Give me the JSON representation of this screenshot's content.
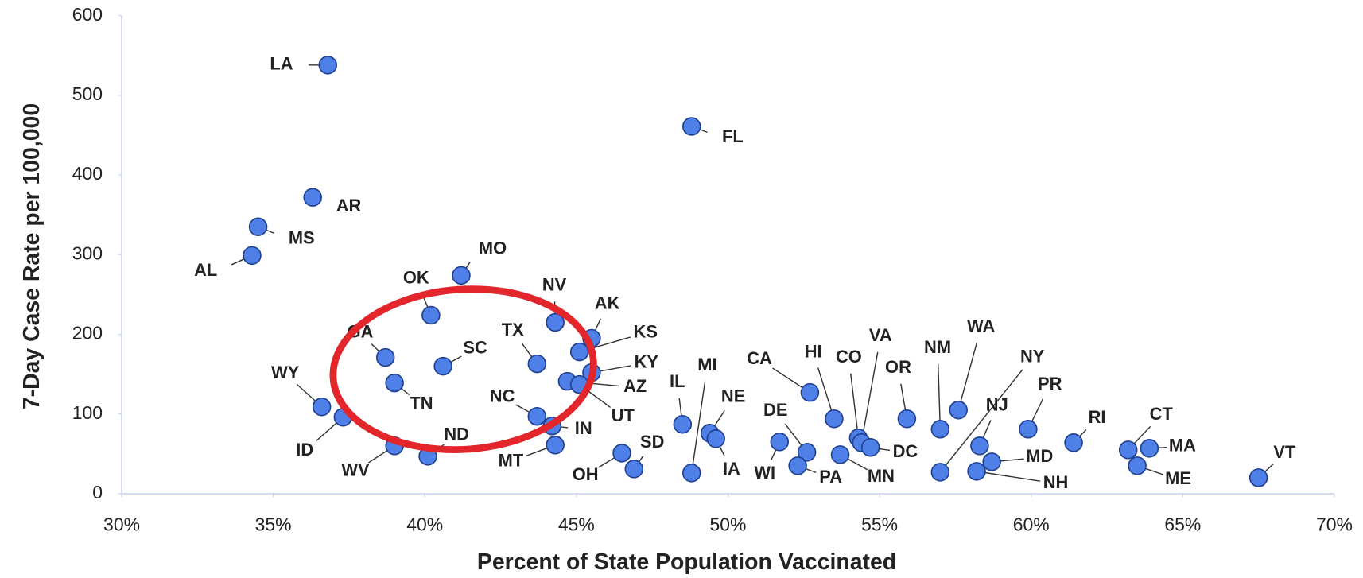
{
  "chart_data": {
    "type": "scatter",
    "xlabel": "Percent of State Population Vaccinated",
    "ylabel": "7-Day Case Rate per 100,000",
    "color": "#4f80e8",
    "xlim": [
      30,
      70
    ],
    "ylim": [
      0,
      600
    ],
    "xticks": [
      {
        "value": 30,
        "label": "30%"
      },
      {
        "value": 35,
        "label": "35%"
      },
      {
        "value": 40,
        "label": "40%"
      },
      {
        "value": 45,
        "label": "45%"
      },
      {
        "value": 50,
        "label": "50%"
      },
      {
        "value": 55,
        "label": "55%"
      },
      {
        "value": 60,
        "label": "60%"
      },
      {
        "value": 65,
        "label": "65%"
      },
      {
        "value": 70,
        "label": "70%"
      }
    ],
    "yticks": [
      0,
      100,
      200,
      300,
      400,
      500,
      600
    ],
    "labels": [
      "LA",
      "FL",
      "AR",
      "MS",
      "AL",
      "MO",
      "OK",
      "NV",
      "AK",
      "KS",
      "GA",
      "SC",
      "TX",
      "KY",
      "AZ",
      "UT",
      "TN",
      "WY",
      "ID",
      "NC",
      "IN",
      "MT",
      "WV",
      "ND",
      "OH",
      "SD",
      "IL",
      "MI",
      "NE",
      "IA",
      "CA",
      "HI",
      "DE",
      "WI",
      "PA",
      "MN",
      "CO",
      "VA",
      "DC",
      "OR",
      "NM",
      "WA",
      "NY",
      "NJ",
      "MD",
      "NH",
      "PR",
      "RI",
      "CT",
      "MA",
      "ME",
      "VT"
    ],
    "x": [
      36.8,
      48.8,
      36.3,
      34.5,
      34.3,
      41.2,
      40.2,
      44.3,
      45.5,
      45.1,
      38.7,
      40.6,
      43.7,
      45.5,
      44.7,
      45.1,
      39.0,
      36.6,
      37.3,
      43.7,
      44.2,
      44.3,
      39.0,
      40.1,
      46.5,
      46.9,
      48.5,
      48.8,
      49.4,
      49.6,
      52.7,
      53.5,
      52.6,
      51.7,
      52.3,
      53.7,
      54.3,
      54.4,
      54.7,
      55.9,
      57.0,
      57.6,
      57.0,
      58.3,
      58.7,
      58.2,
      59.9,
      61.4,
      63.2,
      63.9,
      63.5,
      67.5
    ],
    "y": [
      538,
      461,
      372,
      335,
      299,
      274,
      224,
      215,
      195,
      178,
      171,
      160,
      163,
      152,
      141,
      137,
      139,
      109,
      96,
      97,
      85,
      61,
      60,
      47,
      51,
      31,
      87,
      26,
      76,
      69,
      127,
      94,
      52,
      65,
      35,
      49,
      70,
      64,
      58,
      94,
      81,
      105,
      27,
      60,
      40,
      28,
      81,
      64,
      55,
      57,
      35,
      20
    ]
  }
}
